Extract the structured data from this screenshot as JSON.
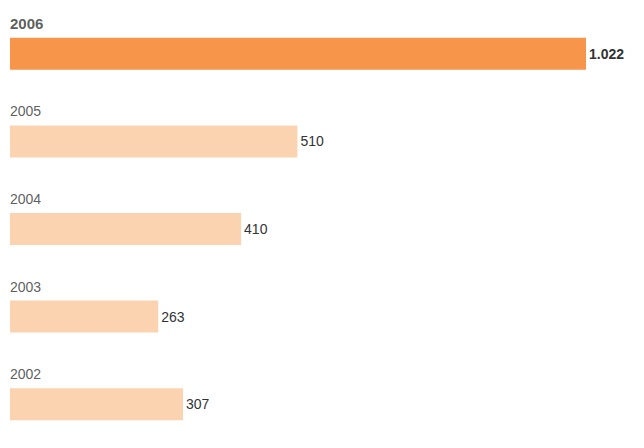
{
  "chart_data": {
    "type": "bar",
    "orientation": "horizontal",
    "categories": [
      "2006",
      "2005",
      "2004",
      "2003",
      "2002"
    ],
    "values": [
      1022,
      510,
      410,
      263,
      307
    ],
    "value_labels": [
      "1.022",
      "510",
      "410",
      "263",
      "307"
    ],
    "colors": [
      "#f7964b",
      "#fcd3b1",
      "#fcd3b1",
      "#fcd3b1",
      "#fcd3b1"
    ],
    "data_labels": true,
    "tick_labels": false,
    "grid": false
  }
}
